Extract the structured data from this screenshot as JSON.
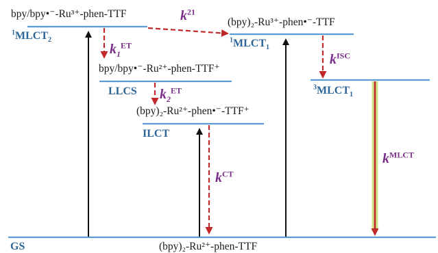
{
  "colors": {
    "level": "#5b9bd5",
    "absorption_arrow": "#111111",
    "transfer_arrow": "#c0282a",
    "state_label": "#2d6496",
    "rate_label": "#7a2e8a",
    "mlct_glow": "#c8e07a"
  },
  "levels": {
    "mlct2": {
      "state": "MLCT",
      "spin": "1",
      "sub": "2",
      "species": "bpy/bpy•⁻-Ru³⁺-phen-TTF"
    },
    "mlct1_singlet": {
      "state": "MLCT",
      "spin": "1",
      "sub": "1",
      "species": "(bpy)₂-Ru³⁺-phen•⁻-TTF"
    },
    "llcs": {
      "state": "LLCS",
      "species": "bpy/bpy•⁻-Ru²⁺-phen-TTF⁺"
    },
    "mlct1_triplet": {
      "state": "MLCT",
      "spin": "3",
      "sub": "1"
    },
    "ilct": {
      "state": "ILCT",
      "species": "(bpy)₂-Ru²⁺-phen•⁻-TTF⁺"
    },
    "gs": {
      "state": "GS",
      "species": "(bpy)₂-Ru²⁺-phen-TTF"
    }
  },
  "rates": {
    "k21": {
      "symbol": "k",
      "sup": "21"
    },
    "k1et": {
      "symbol": "k",
      "sub": "1",
      "sup": "ET"
    },
    "k2et": {
      "symbol": "k",
      "sub": "2",
      "sup": "ET"
    },
    "kisc": {
      "symbol": "k",
      "sup": "ISC"
    },
    "kct": {
      "symbol": "k",
      "sup": "CT"
    },
    "kmlct": {
      "symbol": "k",
      "sup": "MLCT"
    }
  }
}
